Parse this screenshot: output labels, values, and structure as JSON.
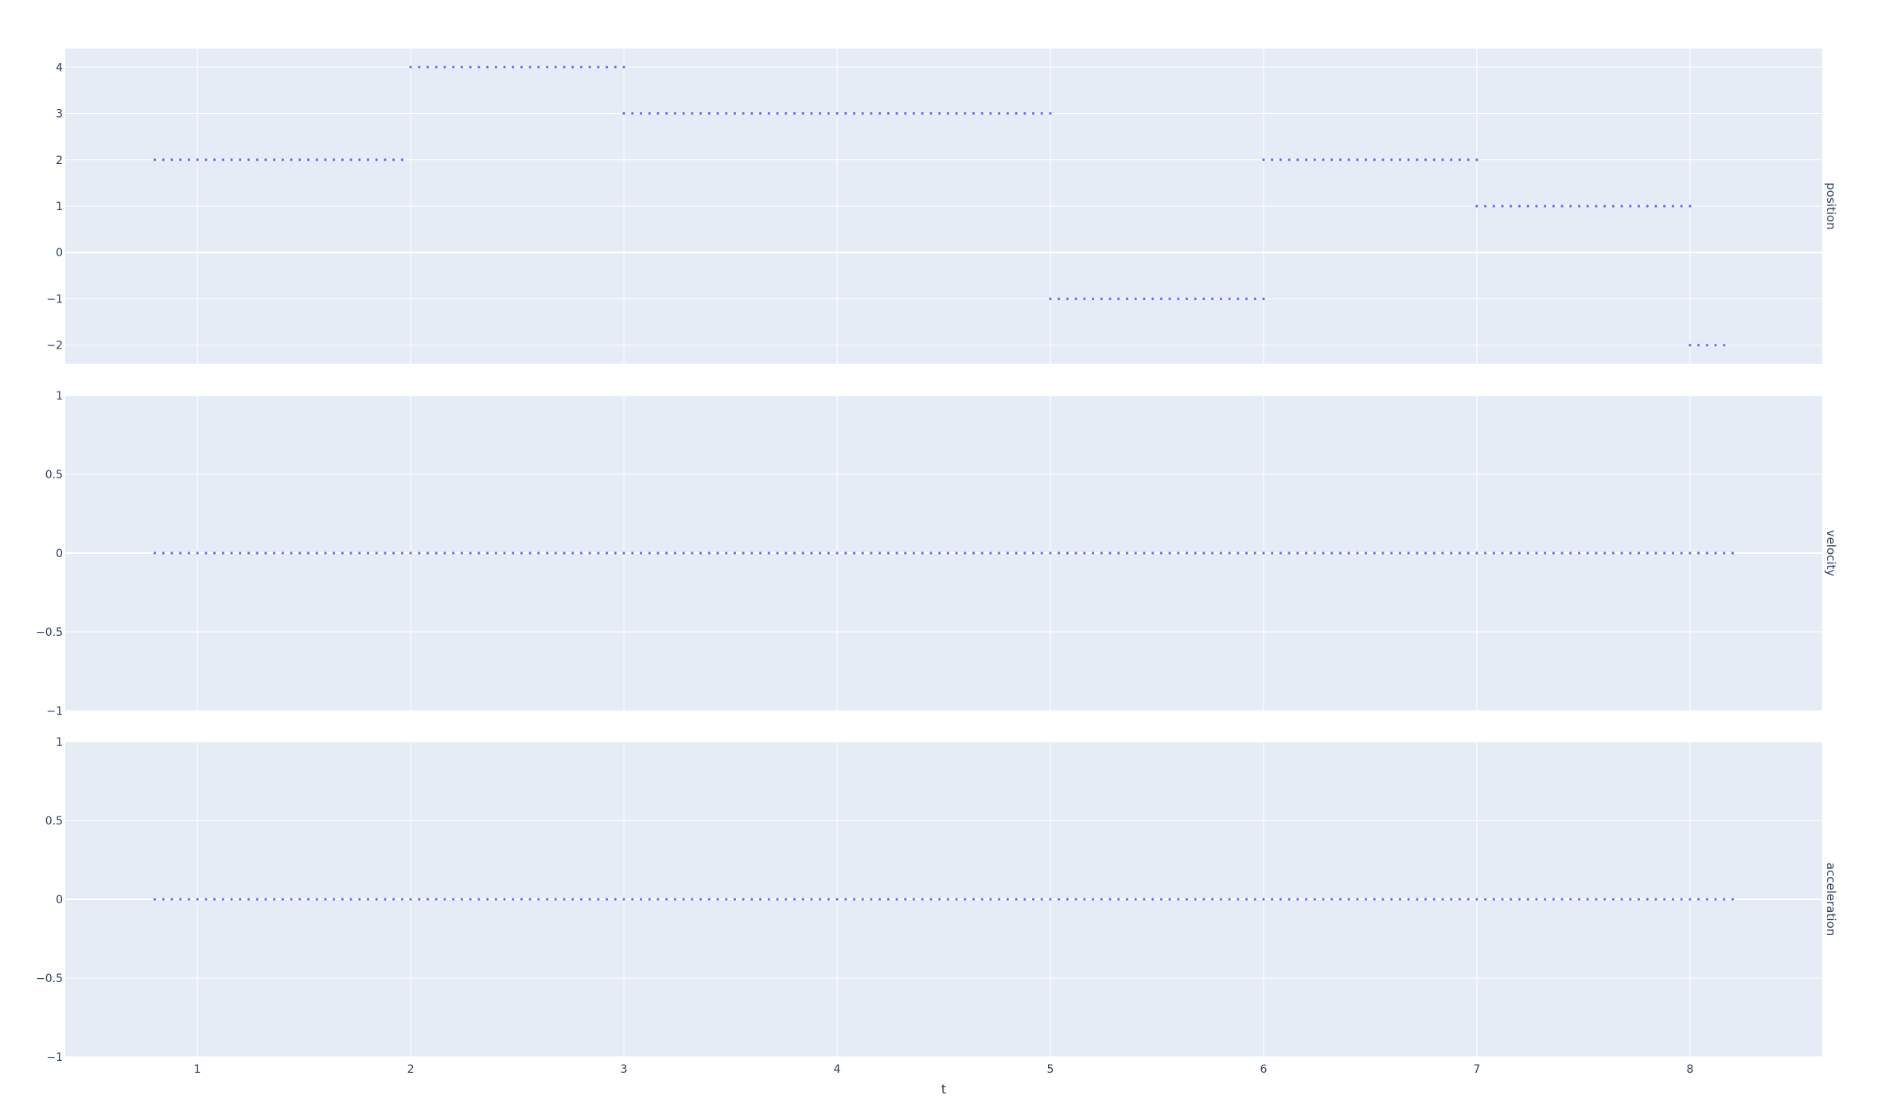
{
  "chart_data": {
    "type": "scatter",
    "xlabel": "t",
    "x_range": [
      0.38,
      8.62
    ],
    "x_ticks": [
      1,
      2,
      3,
      4,
      5,
      6,
      7,
      8
    ],
    "point_step": 0.04,
    "marker_color": "#636efa",
    "plot_bgcolor": "#e5ecf6",
    "grid_color": "#ffffff",
    "grid": true,
    "facets": [
      {
        "label": "position",
        "y_range": [
          -2.4,
          4.4
        ],
        "y_ticks": [
          4,
          3,
          2,
          1,
          0,
          -1,
          -2
        ],
        "y_tick_labels": [
          "4",
          "3",
          "2",
          "1",
          "0",
          "−1",
          "−2"
        ],
        "segments": [
          {
            "x_start": 0.8,
            "x_end": 1.98,
            "y": 2
          },
          {
            "x_start": 2.0,
            "x_end": 2.98,
            "y": 4
          },
          {
            "x_start": 3.0,
            "x_end": 4.98,
            "y": 3
          },
          {
            "x_start": 5.0,
            "x_end": 5.98,
            "y": -1
          },
          {
            "x_start": 6.0,
            "x_end": 6.98,
            "y": 2
          },
          {
            "x_start": 7.0,
            "x_end": 7.98,
            "y": 1
          },
          {
            "x_start": 8.0,
            "x_end": 8.18,
            "y": -2
          }
        ]
      },
      {
        "label": "velocity",
        "y_range": [
          -1,
          1
        ],
        "y_ticks": [
          1,
          0.5,
          0,
          -0.5,
          -1
        ],
        "y_tick_labels": [
          "1",
          "0.5",
          "0",
          "−0.5",
          "−1"
        ],
        "segments": [
          {
            "x_start": 0.8,
            "x_end": 8.18,
            "y": 0
          }
        ]
      },
      {
        "label": "acceleration",
        "y_range": [
          -1,
          1
        ],
        "y_ticks": [
          1,
          0.5,
          0,
          -0.5,
          -1
        ],
        "y_tick_labels": [
          "1",
          "0.5",
          "0",
          "−0.5",
          "−1"
        ],
        "segments": [
          {
            "x_start": 0.8,
            "x_end": 8.18,
            "y": 0
          }
        ]
      }
    ]
  }
}
